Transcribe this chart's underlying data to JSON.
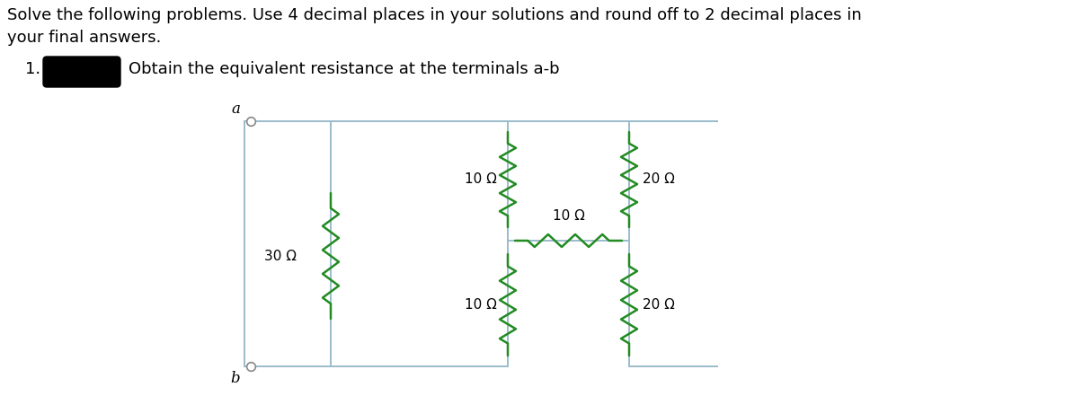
{
  "title_line1": "Solve the following problems. Use 4 decimal places in your solutions and round off to 2 decimal places in",
  "title_line2": "your final answers.",
  "problem_number": "1.",
  "problem_text": "Obtain the equivalent resistance at the terminals a-b",
  "background_color": "#ffffff",
  "wire_color": "#9bbccc",
  "resistor_color": "#228B22",
  "text_color": "#000000",
  "label_a": "a",
  "label_b": "b",
  "font_size_title": 13,
  "font_size_problem": 13,
  "font_size_resistor": 11
}
